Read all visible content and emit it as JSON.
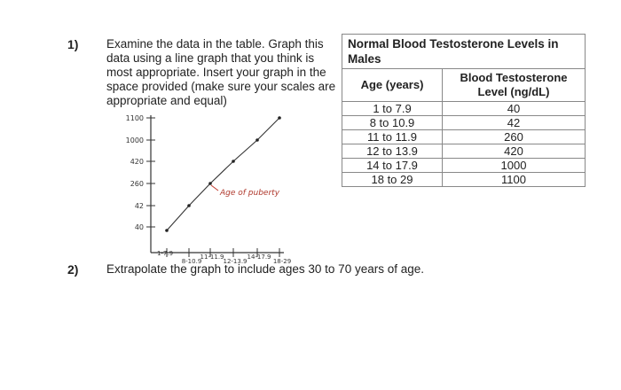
{
  "question1": {
    "number": "1)",
    "lines": [
      "Examine the data in the table. Graph this",
      "data using a line graph that you think is",
      "most appropriate. Insert your graph in the",
      "space provided (make sure your scales are",
      "appropriate and equal)"
    ]
  },
  "table": {
    "caption": "Normal Blood Testosterone Levels in Males",
    "col_age": "Age (years)",
    "col_level": "Blood Testosterone Level (ng/dL)",
    "rows": [
      {
        "age": "1 to 7.9",
        "level": "40"
      },
      {
        "age": "8 to 10.9",
        "level": "42"
      },
      {
        "age": "11 to 11.9",
        "level": "260"
      },
      {
        "age": "12 to 13.9",
        "level": "420"
      },
      {
        "age": "14 to 17.9",
        "level": "1000"
      },
      {
        "age": "18 to 29",
        "level": "1100"
      }
    ]
  },
  "graph": {
    "y_ticks": [
      "40",
      "42",
      "260",
      "420",
      "1000",
      "1100"
    ],
    "x_ticks": [
      "1-7.9",
      "8-10.9",
      "11-11.9",
      "12-13.9",
      "14-17.9",
      "18-29"
    ],
    "annotation": "Age of puberty",
    "colors": {
      "ink": "#333333"
    }
  },
  "question2": {
    "number": "2)",
    "text": "Extrapolate the graph to include ages 30 to 70 years of age."
  }
}
